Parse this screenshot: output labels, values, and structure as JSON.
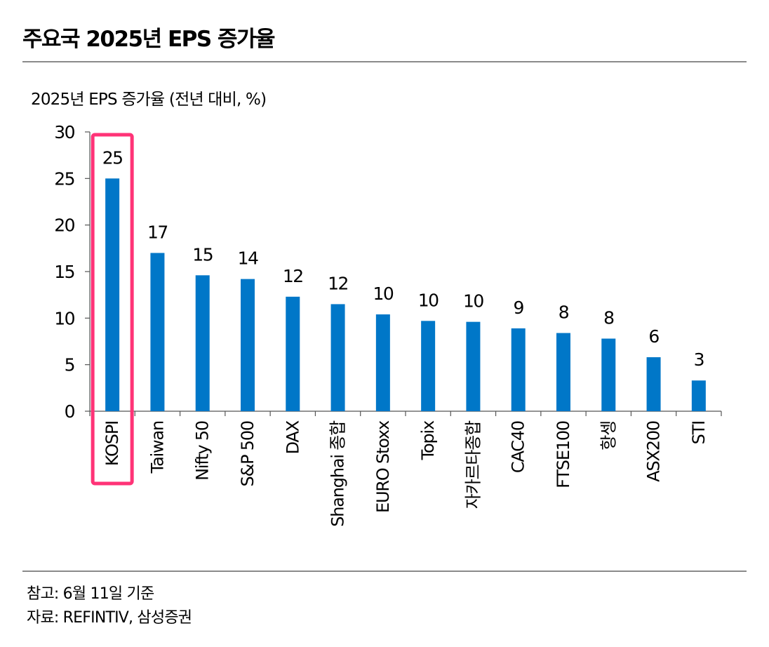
{
  "header": {
    "title": "주요국 2025년 EPS 증가율"
  },
  "notes": {
    "note": "참고: 6월 11일 기준",
    "source": "자료: REFINTIV, 삼성증권"
  },
  "chart_data": {
    "type": "bar",
    "title": "주요국 2025년 EPS 증가율",
    "subtitle": "2025년 EPS 증가율 (전년 대비, %)",
    "xlabel": "",
    "ylabel": "2025년 EPS 증가율 (전년 대비, %)",
    "ylim": [
      0,
      30
    ],
    "yticks": [
      0,
      5,
      10,
      15,
      20,
      25,
      30
    ],
    "grid": false,
    "categories": [
      "KOSPI",
      "Taiwan",
      "Nifty 50",
      "S&P 500",
      "DAX",
      "Shanghai 종합",
      "EURO Stoxx",
      "Topix",
      "자카르타종합",
      "CAC40",
      "FTSE100",
      "항셍",
      "ASX200",
      "STI"
    ],
    "values": [
      25.0,
      17.0,
      14.6,
      14.2,
      12.3,
      11.5,
      10.4,
      9.7,
      9.6,
      8.9,
      8.4,
      7.8,
      5.8,
      3.3
    ],
    "data_labels": [
      "25",
      "17",
      "15",
      "14",
      "12",
      "12",
      "10",
      "10",
      "10",
      "9",
      "8",
      "8",
      "6",
      "3"
    ],
    "highlight": {
      "category": "KOSPI",
      "color": "#ff3377"
    },
    "bar_color": "#0077c8",
    "annotations": []
  }
}
